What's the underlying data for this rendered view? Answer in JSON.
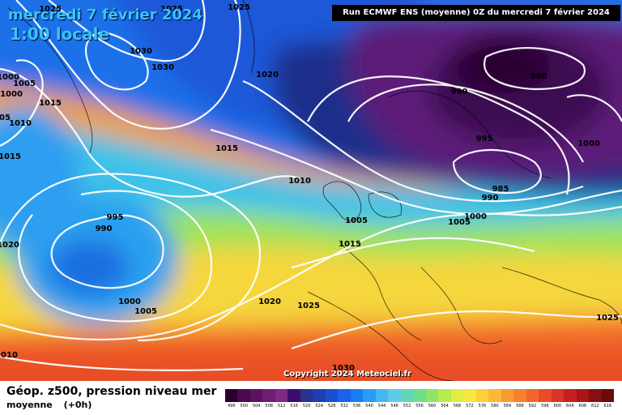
{
  "header": {
    "date_title": "mercredi 7 février 2024",
    "time_title": "1:00 locale",
    "run_info": "Run ECMWF ENS (moyenne) 0Z du mercredi 7 février 2024"
  },
  "copyright": "Copyright 2024 Meteociel.fr",
  "footer": {
    "parameter": "Géop. z500, pression niveau mer",
    "product": "moyenne",
    "lead_time": "(+0h)"
  },
  "colorbar": {
    "labels": [
      "496",
      "500",
      "504",
      "508",
      "512",
      "516",
      "520",
      "524",
      "528",
      "532",
      "536",
      "540",
      "544",
      "548",
      "552",
      "556",
      "560",
      "564",
      "568",
      "572",
      "576",
      "580",
      "584",
      "588",
      "592",
      "596",
      "600",
      "604",
      "608",
      "612",
      "616"
    ],
    "colors": [
      "#2b0030",
      "#4a0a4e",
      "#5c1262",
      "#6e1f74",
      "#7f2a86",
      "#3b0d6e",
      "#27338e",
      "#1d3fb0",
      "#1a4fd0",
      "#1a63e8",
      "#1b7cf2",
      "#2b9cf5",
      "#44b6f2",
      "#5dcbe8",
      "#61d6b8",
      "#6cdf8a",
      "#8fe36a",
      "#b9ea50",
      "#e0ee44",
      "#f7e83f",
      "#fbd03b",
      "#fbb838",
      "#f99a33",
      "#f6802f",
      "#f2662b",
      "#ea4c27",
      "#dd3523",
      "#c62020",
      "#a81616",
      "#880f0f",
      "#6a0a0a"
    ]
  },
  "isobars": [
    {
      "label": "1025",
      "pos": "a"
    },
    {
      "label": "1025",
      "pos": "b"
    },
    {
      "label": "1025",
      "pos": "c"
    },
    {
      "label": "1030",
      "pos": "d"
    },
    {
      "label": "1030",
      "pos": "e"
    },
    {
      "label": "1000",
      "pos": "f"
    },
    {
      "label": "1005",
      "pos": "g"
    },
    {
      "label": "1000",
      "pos": "h"
    },
    {
      "label": "1015",
      "pos": "i"
    },
    {
      "label": "1010",
      "pos": "j"
    },
    {
      "label": "05",
      "pos": "k"
    },
    {
      "label": "1020",
      "pos": "l"
    },
    {
      "label": "1015",
      "pos": "m"
    },
    {
      "label": "1015",
      "pos": "n"
    },
    {
      "label": "1010",
      "pos": "o"
    },
    {
      "label": "995",
      "pos": "p"
    },
    {
      "label": "990",
      "pos": "q"
    },
    {
      "label": "1020",
      "pos": "r"
    },
    {
      "label": "1000",
      "pos": "s"
    },
    {
      "label": "1005",
      "pos": "t"
    },
    {
      "label": "1020",
      "pos": "u"
    },
    {
      "label": "1025",
      "pos": "v"
    },
    {
      "label": "1005",
      "pos": "w"
    },
    {
      "label": "1015",
      "pos": "x"
    },
    {
      "label": "1005",
      "pos": "y"
    },
    {
      "label": "1000",
      "pos": "z"
    },
    {
      "label": "990",
      "pos": "aa"
    },
    {
      "label": "990",
      "pos": "ab"
    },
    {
      "label": "995",
      "pos": "ac"
    },
    {
      "label": "985",
      "pos": "ad"
    },
    {
      "label": "990",
      "pos": "ae"
    },
    {
      "label": "1000",
      "pos": "af"
    },
    {
      "label": "1025",
      "pos": "ag"
    },
    {
      "label": "1010",
      "pos": "ah"
    },
    {
      "label": "1030",
      "pos": "ai"
    }
  ]
}
